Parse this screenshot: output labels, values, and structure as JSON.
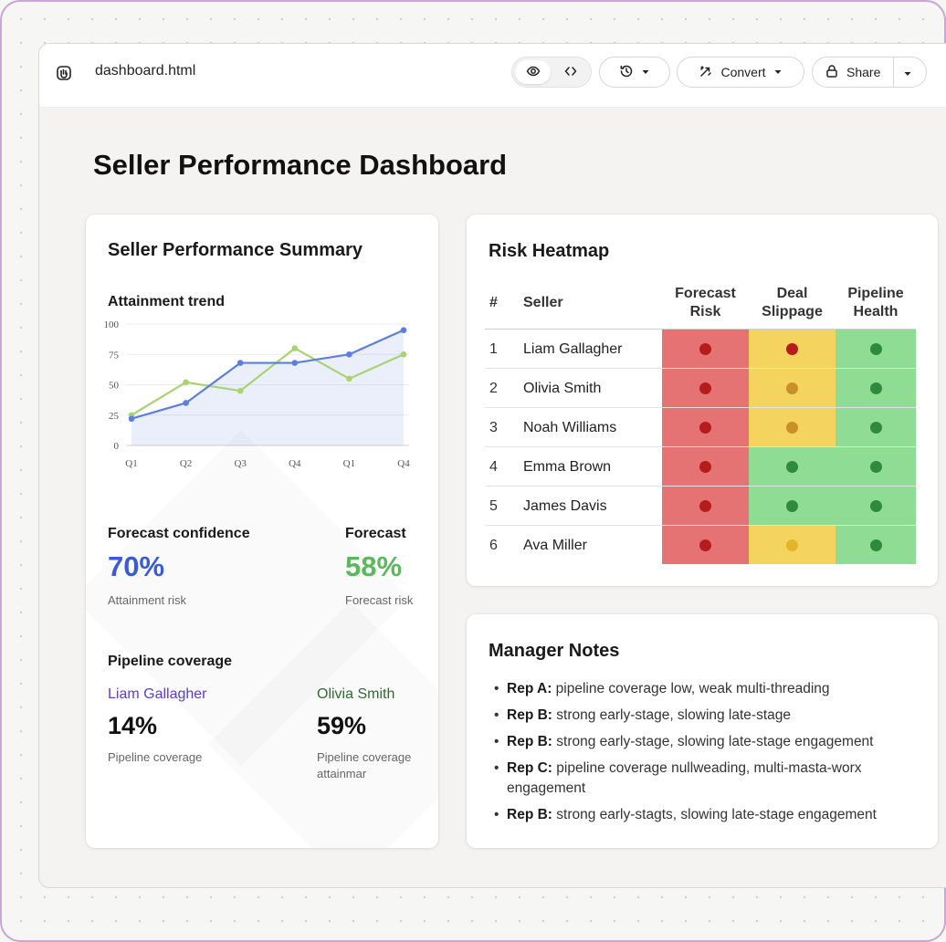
{
  "toolbar": {
    "file_name": "dashboard.html",
    "convert_label": "Convert",
    "share_label": "Share"
  },
  "page": {
    "title": "Seller Performance Dashboard"
  },
  "summary": {
    "title": "Seller Performance Summary",
    "chart_label": "Attainment trend",
    "forecast_confidence": {
      "label": "Forecast confidence",
      "value": "70%",
      "caption": "Attainment risk",
      "color": "#3b5bd6"
    },
    "forecast": {
      "label": "Forecast",
      "value": "58%",
      "caption": "Forecast risk",
      "color": "#5cb85c"
    },
    "pipeline": {
      "label": "Pipeline coverage",
      "left": {
        "name": "Liam Gallagher",
        "value": "14%",
        "caption": "Pipeline coverage",
        "color": "#5b3fc4"
      },
      "right": {
        "name": "Olivia Smith",
        "value": "59%",
        "caption": "Pipeline coverage attainmar",
        "color": "#2f6b2f"
      }
    }
  },
  "chart_data": {
    "type": "line",
    "categories": [
      "Q1",
      "Q2",
      "Q3",
      "Q4",
      "Q1",
      "Q4"
    ],
    "yticks": [
      0,
      25,
      50,
      75,
      100
    ],
    "ylim": [
      0,
      100
    ],
    "grid": true,
    "series": [
      {
        "values": [
          22,
          35,
          68,
          68,
          75,
          95
        ],
        "color": "#5b7fe0",
        "fill": true
      },
      {
        "values": [
          25,
          52,
          45,
          80,
          55,
          75
        ],
        "color": "#a8d46f",
        "fill": false
      }
    ]
  },
  "heatmap": {
    "title": "Risk Heatmap",
    "headers": {
      "num": "#",
      "seller": "Seller",
      "forecast_risk": [
        "Forecast",
        "Risk"
      ],
      "deal_slippage": [
        "Deal",
        "Slippage"
      ],
      "pipeline_health": [
        "Pipeline",
        "Health"
      ]
    },
    "colors": {
      "red_cell": "#e57373",
      "red_dot": "#b71c1c",
      "yellow_cell": "#f4d35e",
      "yellow_dot_a": "#c62828",
      "yellow_dot_b": "#c8902a",
      "green_cell": "#8fdc95",
      "green_dot": "#2e8b3e"
    },
    "rows": [
      {
        "num": "1",
        "name": "Liam Gallagher",
        "cells": [
          "red",
          "yellow",
          "green"
        ],
        "dots": [
          "red",
          "red",
          "green"
        ]
      },
      {
        "num": "2",
        "name": "Olivia Smith",
        "cells": [
          "red",
          "yellow",
          "green"
        ],
        "dots": [
          "red",
          "amber",
          "green"
        ]
      },
      {
        "num": "3",
        "name": "Noah Williams",
        "cells": [
          "red",
          "yellow",
          "green"
        ],
        "dots": [
          "red",
          "amber",
          "green"
        ]
      },
      {
        "num": "4",
        "name": "Emma Brown",
        "cells": [
          "red",
          "green",
          "green"
        ],
        "dots": [
          "red",
          "green",
          "green"
        ]
      },
      {
        "num": "5",
        "name": "James Davis",
        "cells": [
          "red",
          "green",
          "green"
        ],
        "dots": [
          "red",
          "green",
          "green"
        ]
      },
      {
        "num": "6",
        "name": "Ava Miller",
        "cells": [
          "red",
          "yellow",
          "green"
        ],
        "dots": [
          "red",
          "gold",
          "green"
        ]
      }
    ]
  },
  "notes": {
    "title": "Manager Notes",
    "items": [
      {
        "rep": "Rep A:",
        "text": " pipeline coverage low, weak multi-threading"
      },
      {
        "rep": "Rep B:",
        "text": " strong early-stage, slowing late-stage"
      },
      {
        "rep": "Rep B:",
        "text": " strong early-stage, slowing late-stage engagement"
      },
      {
        "rep": "Rep C:",
        "text": " pipeline coverage nullweading, multi-masta-worx engagement"
      },
      {
        "rep": "Rep B:",
        "text": " strong early-stagts, slowing late-stage engagement"
      }
    ]
  }
}
